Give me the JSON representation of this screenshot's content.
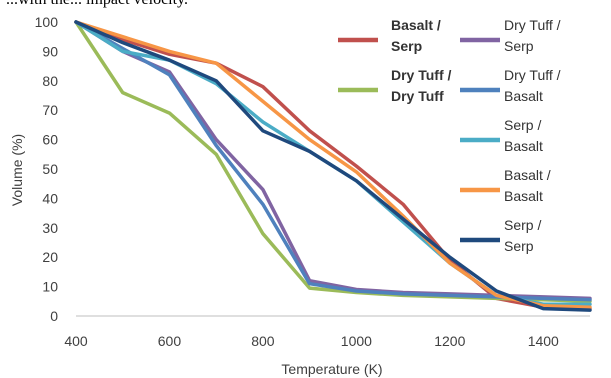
{
  "header_text": "...with the... impact velocity.",
  "chart_data": {
    "type": "line",
    "title": "",
    "xlabel": "Temperature (K)",
    "ylabel": "Volume (%)",
    "xlim": [
      400,
      1500
    ],
    "ylim": [
      0,
      100
    ],
    "xticks": [
      400,
      600,
      800,
      1000,
      1200,
      1400
    ],
    "yticks": [
      0,
      10,
      20,
      30,
      40,
      50,
      60,
      70,
      80,
      90,
      100
    ],
    "grid": false,
    "legend_position": "top-right",
    "x": [
      400,
      500,
      600,
      700,
      800,
      900,
      1000,
      1100,
      1200,
      1300,
      1400,
      1500
    ],
    "series": [
      {
        "name": "Basalt / Serp",
        "bold": true,
        "color": "#C0504D",
        "values": [
          100,
          94,
          89,
          86,
          78,
          63,
          51,
          38,
          19,
          6,
          3,
          2.5
        ]
      },
      {
        "name": "Dry Tuff / Dry Tuff",
        "bold": true,
        "color": "#9BBB59",
        "values": [
          100,
          76,
          69,
          55,
          28,
          9.5,
          8,
          7,
          6.5,
          6,
          5.5,
          5
        ]
      },
      {
        "name": "Dry Tuff / Serp",
        "bold": false,
        "color": "#8064A2",
        "values": [
          100,
          90,
          83,
          60,
          43,
          12,
          9,
          8,
          7.5,
          7,
          6.5,
          6
        ]
      },
      {
        "name": "Dry Tuff / Basalt",
        "bold": false,
        "color": "#4F81BD",
        "values": [
          100,
          91,
          82,
          58,
          38,
          11,
          8.5,
          7.5,
          7,
          6.5,
          6,
          5.5
        ]
      },
      {
        "name": "Serp / Basalt",
        "bold": false,
        "color": "#4BACC6",
        "values": [
          100,
          90,
          87,
          79,
          66,
          56,
          46,
          32,
          18,
          7,
          4,
          4
        ]
      },
      {
        "name": "Basalt / Basalt",
        "bold": false,
        "color": "#F79646",
        "values": [
          100,
          95,
          90,
          86,
          73,
          60,
          49,
          34,
          18,
          7,
          3.5,
          3
        ]
      },
      {
        "name": "Serp / Serp",
        "bold": false,
        "color": "#1F497D",
        "values": [
          100,
          93,
          87,
          80,
          63,
          56,
          46,
          33,
          20,
          8.5,
          2.5,
          2
        ]
      }
    ]
  }
}
